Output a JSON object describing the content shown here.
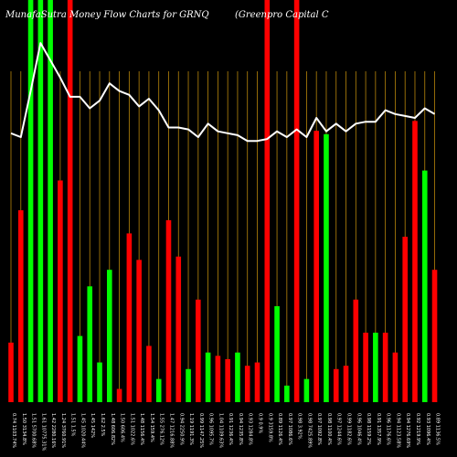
{
  "colors": {
    "background": "#000000",
    "grid": "#b8860b",
    "up_bar": "#00ff00",
    "down_bar": "#ff0000",
    "line": "#ffffff",
    "text": "#ffffff"
  },
  "chart_data": {
    "type": "bar",
    "title": "MunafaSutra  Money Flow  Charts for GRNQ",
    "subtitle": "(Greenpro  Capital C",
    "grid": true,
    "ylim": [
      0,
      100
    ],
    "line_ylim": [
      0,
      100
    ],
    "categories": [
      "0.74 1103.74%",
      "1.50 3134.8%",
      "1.51 5700.68%",
      "1.61 10775.31%",
      "1.42 2280.16%",
      "1.24 3760.91%",
      "1.51 1.5%",
      "1.45 1020.44%",
      "1.45 142%",
      "1.62 2.5%",
      "1.48 606.82%",
      "1.50 606.4%",
      "1.51 1022.6%",
      "1.48 1156.4%",
      "1.54 159.4%",
      "1.55 276.12%",
      "1.47 1216.88%",
      "0.94 2250.9%",
      "1.19 1191.3%",
      "0.99 1147.25%",
      "0.96 1095.7%",
      "1.04 1109.63%",
      "0.91 1236.4%",
      "0.94 1235.8%",
      "0.93 1284.8%",
      "0.9 0.9%",
      "0.9 3159.8%",
      "0.89 1126.4%",
      "0.97 1086.6%",
      "0.98 3.92%",
      "0.98 7425.89%",
      "0.97 1092.8%",
      "0.98 1100.4%",
      "0.97 1244.6%",
      "0.99 1182.6%",
      "0.96 1046.4%",
      "0.98 1159.2%",
      "0.91 1357.9%",
      "0.96 1176.6%",
      "0.94 1123.58%",
      "0.94 1276.69%",
      "0.92 1219.9%",
      "0.93 1096.4%",
      "0.89 1136.5%"
    ],
    "series": [
      {
        "type": "bar",
        "colors": [
          "down",
          "down",
          "up",
          "up",
          "up",
          "down",
          "down",
          "up",
          "up",
          "up",
          "up",
          "down",
          "down",
          "down",
          "down",
          "up",
          "down",
          "down",
          "up",
          "down",
          "up",
          "down",
          "down",
          "up",
          "down",
          "down",
          "down",
          "up",
          "up",
          "down",
          "up",
          "down",
          "up",
          "down",
          "down",
          "down",
          "down",
          "up",
          "down",
          "down",
          "down",
          "down",
          "up",
          "down"
        ],
        "values": [
          18,
          58,
          100,
          100,
          100,
          67,
          100,
          20,
          35,
          12,
          40,
          4,
          51,
          43,
          17,
          7,
          55,
          44,
          10,
          31,
          15,
          14,
          13,
          15,
          11,
          12,
          100,
          29,
          5,
          100,
          7,
          82,
          81,
          10,
          11,
          31,
          21,
          21,
          21,
          15,
          50,
          85,
          70,
          40
        ]
      },
      {
        "type": "line",
        "values": [
          52,
          50,
          74,
          99,
          90,
          81,
          71,
          71,
          65,
          69,
          78,
          74,
          72,
          66,
          70,
          64,
          55,
          55,
          54,
          50,
          57,
          53,
          52,
          51,
          48,
          48,
          49,
          53,
          50,
          54,
          50,
          60,
          53,
          57,
          53,
          57,
          58,
          58,
          64,
          62,
          61,
          60,
          65,
          62
        ]
      }
    ]
  }
}
